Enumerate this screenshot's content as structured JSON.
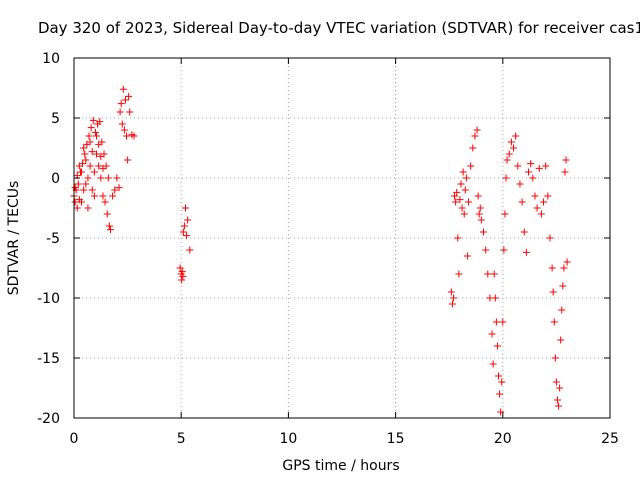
{
  "chart_data": {
    "type": "scatter",
    "title": "Day 320 of 2023, Sidereal Day-to-day VTEC variation (SDTVAR) for receiver cas1",
    "xlabel": "GPS time / hours",
    "ylabel": "SDTVAR / TECUs",
    "xlim": [
      0,
      25
    ],
    "ylim": [
      -20,
      10
    ],
    "xticks": [
      0,
      5,
      10,
      15,
      20,
      25
    ],
    "yticks": [
      -20,
      -15,
      -10,
      -5,
      0,
      5,
      10
    ],
    "xtick_labels": [
      "0",
      "5",
      "10",
      "15",
      "20",
      "25"
    ],
    "ytick_labels": [
      "-20",
      "-15",
      "-10",
      "-5",
      "0",
      "5",
      "10"
    ],
    "grid": true,
    "marker": "plus",
    "series": [
      {
        "name": "SDTVAR",
        "color": "#ff0000",
        "segments": [
          {
            "x": [
              0.0,
              0.05,
              0.1,
              0.15,
              0.2,
              0.25,
              0.3,
              0.35,
              0.4,
              0.45,
              0.5,
              0.55,
              0.6,
              0.65,
              0.7,
              0.75,
              0.8,
              0.85,
              0.9,
              0.95,
              1.0,
              1.05,
              1.1,
              1.15,
              1.2,
              1.25,
              1.3,
              1.35,
              1.4,
              1.45,
              1.5,
              1.55,
              1.6,
              1.65,
              1.7
            ],
            "y": [
              -1.5,
              -2.0,
              -1.0,
              -2.5,
              -0.5,
              -1.8,
              0.5,
              -2.0,
              1.2,
              -1.0,
              2.0,
              -0.5,
              2.8,
              0.0,
              3.5,
              1.0,
              4.2,
              -1.0,
              4.8,
              0.5,
              3.8,
              2.0,
              4.5,
              1.0,
              4.7,
              0.0,
              3.0,
              -1.5,
              2.0,
              -2.0,
              1.0,
              -3.0,
              0.0,
              -4.0,
              -4.3
            ]
          },
          {
            "x": [
              0.05,
              0.15,
              0.25,
              0.35,
              0.45,
              0.55,
              0.65,
              0.75,
              0.85,
              0.95,
              1.05,
              1.15,
              1.25,
              1.35
            ],
            "y": [
              -0.8,
              0.2,
              1.0,
              0.5,
              2.5,
              1.5,
              -2.5,
              3.0,
              2.2,
              -1.5,
              3.5,
              2.8,
              1.8,
              0.8
            ]
          },
          {
            "x": [
              1.8,
              1.9,
              2.0,
              2.1,
              2.15,
              2.2,
              2.25,
              2.3,
              2.35,
              2.4,
              2.45,
              2.5,
              2.55,
              2.6,
              2.7,
              2.8
            ],
            "y": [
              -1.5,
              -1.0,
              0.0,
              -0.8,
              5.5,
              6.2,
              4.5,
              7.4,
              4.0,
              6.5,
              3.5,
              1.5,
              6.8,
              5.5,
              3.6,
              3.5
            ]
          },
          {
            "x": [
              4.95,
              5.0,
              5.02,
              5.05,
              5.08,
              5.1,
              5.15,
              5.2,
              5.25,
              5.3,
              5.4
            ],
            "y": [
              -7.5,
              -8.0,
              -8.5,
              -7.8,
              -8.2,
              -4.5,
              -4.0,
              -2.5,
              -4.8,
              -3.5,
              -6.0
            ]
          },
          {
            "x": [
              17.6,
              17.65,
              17.7,
              17.75,
              17.8,
              17.85,
              17.9,
              17.95,
              18.0,
              18.05,
              18.1,
              18.15,
              18.2,
              18.25,
              18.3,
              18.35,
              18.4,
              18.5,
              18.6,
              18.7,
              18.8,
              18.85,
              18.9,
              18.95,
              19.0,
              19.1,
              19.2
            ],
            "y": [
              -9.5,
              -10.5,
              -10.0,
              -1.5,
              -2.0,
              -1.2,
              -5.0,
              -8.0,
              -1.8,
              -0.5,
              -2.5,
              0.5,
              -3.0,
              -1.0,
              0.0,
              -6.5,
              -2.0,
              1.0,
              2.5,
              3.5,
              4.0,
              -1.5,
              -3.0,
              -2.5,
              -3.5,
              -4.5,
              -6.0
            ]
          },
          {
            "x": [
              19.3,
              19.4,
              19.5,
              19.55,
              19.6,
              19.65,
              19.7,
              19.75,
              19.8,
              19.85,
              19.9,
              19.95,
              20.0,
              20.05,
              20.1,
              20.15,
              20.2,
              20.3,
              20.4,
              20.5,
              20.6,
              20.7,
              20.8,
              20.9,
              21.0,
              21.1
            ],
            "y": [
              -8.0,
              -10.0,
              -13.0,
              -15.5,
              -8.0,
              -10.0,
              -12.0,
              -14.0,
              -16.5,
              -18.0,
              -19.5,
              -17.0,
              -12.0,
              -6.0,
              -3.0,
              0.0,
              1.5,
              2.0,
              3.0,
              2.5,
              3.5,
              1.0,
              -0.5,
              -2.0,
              -4.5,
              -6.2
            ]
          },
          {
            "x": [
              21.2,
              21.3,
              21.4,
              21.5,
              21.6,
              21.7,
              21.8,
              21.9,
              22.0,
              22.1,
              22.2,
              22.3,
              22.35,
              22.4,
              22.45,
              22.5,
              22.55,
              22.6,
              22.65,
              22.7,
              22.75,
              22.8,
              22.85,
              22.9,
              22.95,
              23.0
            ],
            "y": [
              0.5,
              1.2,
              0.0,
              -1.5,
              -2.5,
              0.8,
              -3.0,
              -2.0,
              1.0,
              -1.5,
              -5.0,
              -7.5,
              -9.5,
              -12.0,
              -15.0,
              -17.0,
              -18.5,
              -19.0,
              -17.5,
              -13.5,
              -11.0,
              -9.0,
              -7.5,
              0.5,
              1.5,
              -7.0
            ]
          }
        ]
      }
    ]
  }
}
